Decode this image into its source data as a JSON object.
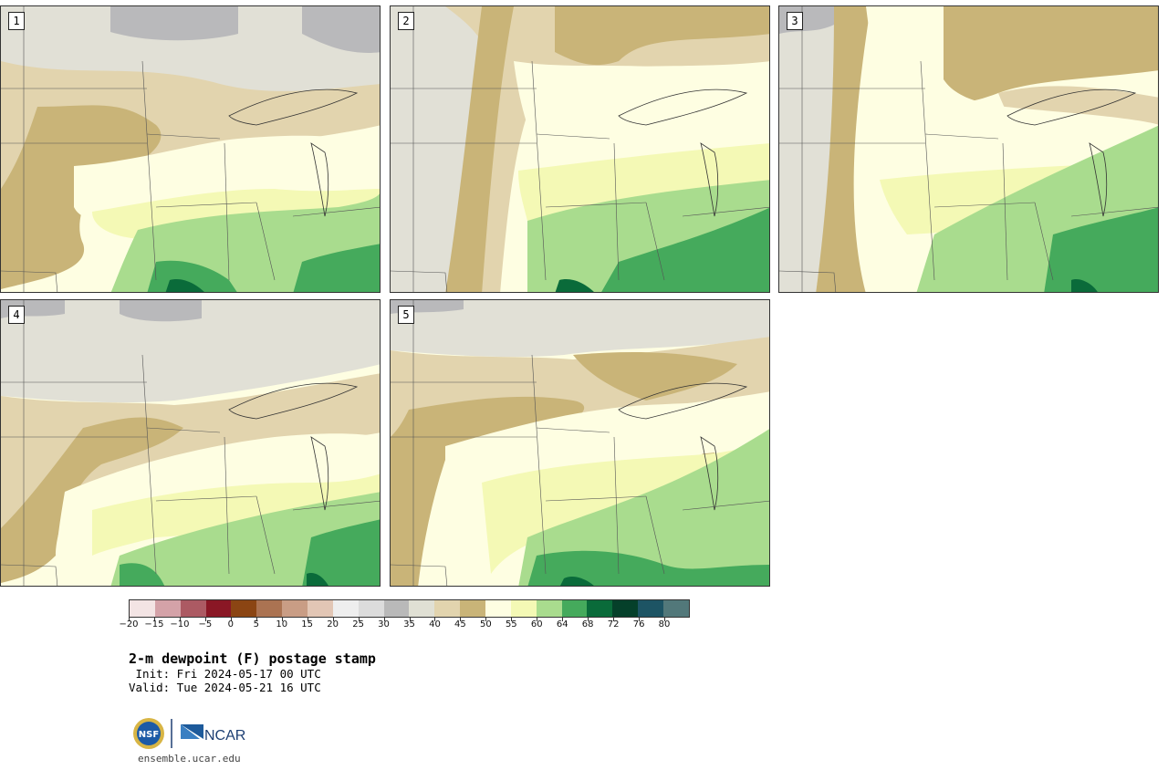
{
  "title": "2-m dewpoint (F) postage stamp",
  "init": " Init: Fri 2024-05-17 00 UTC",
  "valid": "Valid: Tue 2024-05-21 16 UTC",
  "site": "ensemble.ucar.edu",
  "logos": {
    "nsf": "NSF",
    "ncar": "NCAR"
  },
  "panels": [
    {
      "label": "1"
    },
    {
      "label": "2"
    },
    {
      "label": "3"
    },
    {
      "label": "4"
    },
    {
      "label": "5"
    }
  ],
  "colorbar": {
    "ticks": [
      "−20",
      "−15",
      "−10",
      "−5",
      "0",
      "5",
      "10",
      "15",
      "20",
      "25",
      "30",
      "35",
      "40",
      "45",
      "50",
      "55",
      "60",
      "64",
      "68",
      "72",
      "76",
      "80"
    ],
    "colors": [
      "#f3e4e4",
      "#d4a2a8",
      "#ac5a63",
      "#8a1725",
      "#8b4513",
      "#ab7352",
      "#c99d85",
      "#e2c6b5",
      "#eeeeee",
      "#dcdcdc",
      "#b9b9b9",
      "#e0e0d4",
      "#e2d4ae",
      "#c9b478",
      "#fefee2",
      "#f4f9b5",
      "#a9dc8e",
      "#45aa5c",
      "#0a6b3a",
      "#05402a",
      "#1d5464",
      "#52787a"
    ]
  },
  "palette": {
    "grey_dark": "#b9b9bb",
    "grey_light": "#e1e0d6",
    "tan_light": "#e2d4ae",
    "tan_dark": "#c9b478",
    "cream": "#fefee2",
    "yellow": "#f4f9b5",
    "green_light": "#a9dc8e",
    "green_mid": "#45aa5c",
    "green_dark": "#0a6b3a"
  }
}
